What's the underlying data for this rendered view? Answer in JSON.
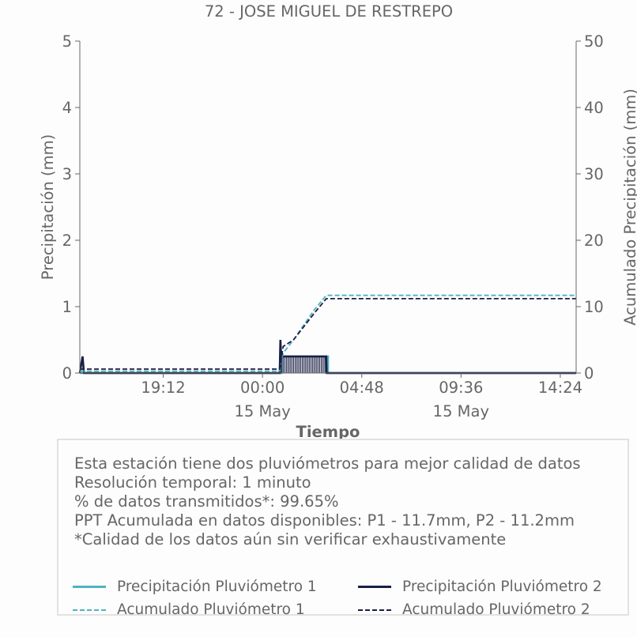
{
  "chart_data": {
    "type": "line",
    "title": "72 - JOSE MIGUEL DE RESTREPO",
    "xlabel": "Tiempo",
    "ylabel_left": "Precipitación (mm)",
    "ylabel_right": "Acumulado Precipitación (mm)",
    "ylim_left": [
      0,
      5
    ],
    "ylim_right": [
      0,
      50
    ],
    "yticks_left": [
      "0",
      "1",
      "2",
      "3",
      "4",
      "5"
    ],
    "yticks_right": [
      "0",
      "10",
      "20",
      "30",
      "40",
      "50"
    ],
    "x_range": [
      "2024-05-14T15:10",
      "2024-05-15T15:10"
    ],
    "xticks": [
      {
        "t": "2024-05-14T19:12",
        "label": "19:12",
        "sub": ""
      },
      {
        "t": "2024-05-15T00:00",
        "label": "00:00",
        "sub": "15 May"
      },
      {
        "t": "2024-05-15T04:48",
        "label": "04:48",
        "sub": ""
      },
      {
        "t": "2024-05-15T09:36",
        "label": "09:36",
        "sub": "15 May"
      },
      {
        "t": "2024-05-15T14:24",
        "label": "14:24",
        "sub": ""
      }
    ],
    "colors": {
      "p1": "#4fb3bf",
      "p2": "#1a1f45",
      "axis": "#666666"
    },
    "series": [
      {
        "name": "Precipitación Pluviómetro 1",
        "axis": "left",
        "style": "solid",
        "color": "#4fb3bf",
        "points": [
          [
            "2024-05-14T15:10",
            0.0
          ],
          [
            "2024-05-15T00:55",
            0.0
          ],
          [
            "2024-05-15T00:55",
            0.25
          ],
          [
            "2024-05-15T03:10",
            0.25
          ],
          [
            "2024-05-15T03:10",
            0.0
          ],
          [
            "2024-05-15T15:10",
            0.0
          ]
        ]
      },
      {
        "name": "Precipitación Pluviómetro 2",
        "axis": "left",
        "style": "solid",
        "color": "#1a1f45",
        "points": [
          [
            "2024-05-14T15:10",
            0.0
          ],
          [
            "2024-05-14T15:18",
            0.25
          ],
          [
            "2024-05-14T15:22",
            0.0
          ],
          [
            "2024-05-15T00:50",
            0.0
          ],
          [
            "2024-05-15T00:52",
            0.5
          ],
          [
            "2024-05-15T00:54",
            0.25
          ],
          [
            "2024-05-15T03:05",
            0.25
          ],
          [
            "2024-05-15T03:06",
            0.0
          ],
          [
            "2024-05-15T15:10",
            0.0
          ]
        ]
      },
      {
        "name": "Acumulado Pluviómetro 1",
        "axis": "right",
        "style": "dashed",
        "color": "#4fb3bf",
        "points": [
          [
            "2024-05-14T15:10",
            0.3
          ],
          [
            "2024-05-15T00:50",
            0.3
          ],
          [
            "2024-05-15T01:00",
            3.0
          ],
          [
            "2024-05-15T01:30",
            5.0
          ],
          [
            "2024-05-15T02:30",
            9.5
          ],
          [
            "2024-05-15T03:05",
            11.7
          ],
          [
            "2024-05-15T15:10",
            11.7
          ]
        ]
      },
      {
        "name": "Acumulado Pluviómetro 2",
        "axis": "right",
        "style": "dashed",
        "color": "#1a1f45",
        "points": [
          [
            "2024-05-14T15:10",
            0.6
          ],
          [
            "2024-05-15T00:50",
            0.6
          ],
          [
            "2024-05-15T01:00",
            4.0
          ],
          [
            "2024-05-15T01:30",
            5.0
          ],
          [
            "2024-05-15T02:30",
            9.0
          ],
          [
            "2024-05-15T03:05",
            11.2
          ],
          [
            "2024-05-15T15:10",
            11.2
          ]
        ]
      }
    ],
    "legend_position": "bottom"
  },
  "info": {
    "lines": [
      "Esta estación tiene dos pluviómetros para mejor calidad de datos",
      "Resolución temporal: 1 minuto",
      "% de datos transmitidos*: 99.65%",
      "PPT Acumulada en datos disponibles: P1 - 11.7mm, P2 - 11.2mm",
      "*Calidad de los datos aún sin verificar exhaustivamente"
    ]
  },
  "legend": [
    {
      "label": "Precipitación Pluviómetro 1",
      "color": "#4fb3bf",
      "style": "solid"
    },
    {
      "label": "Precipitación Pluviómetro 2",
      "color": "#1a1f45",
      "style": "solid"
    },
    {
      "label": "Acumulado Pluviómetro 1",
      "color": "#4fb3bf",
      "style": "dashed"
    },
    {
      "label": "Acumulado Pluviómetro 2",
      "color": "#1a1f45",
      "style": "dashed"
    }
  ]
}
